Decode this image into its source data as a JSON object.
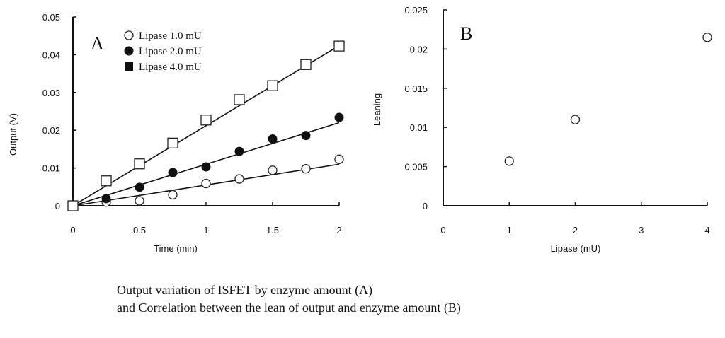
{
  "chart_data": [
    {
      "type": "scatter",
      "panel_label": "A",
      "xlabel": "Time (min)",
      "ylabel": "Output (V)",
      "xlim": [
        0,
        2
      ],
      "ylim": [
        0,
        0.05
      ],
      "xticks": [
        "0",
        "0.5",
        "1",
        "1.5",
        "2"
      ],
      "xtick_values": [
        0,
        0.5,
        1,
        1.5,
        2
      ],
      "yticks": [
        "0",
        "0.01",
        "0.02",
        "0.03",
        "0.04",
        "0.05"
      ],
      "ytick_values": [
        0,
        0.01,
        0.02,
        0.03,
        0.04,
        0.05
      ],
      "grid": false,
      "legend_position": "top-left",
      "series": [
        {
          "name": "Lipase 1.0 mU",
          "marker": "open-circle",
          "x": [
            0,
            0.25,
            0.5,
            0.75,
            1,
            1.25,
            1.5,
            1.75,
            2
          ],
          "y": [
            0,
            0.001,
            0.0013,
            0.0029,
            0.0059,
            0.0071,
            0.0094,
            0.0098,
            0.0123
          ],
          "fit_slope": 0.0055
        },
        {
          "name": "Lipase 2.0 mU",
          "marker": "filled-circle",
          "x": [
            0,
            0.25,
            0.5,
            0.75,
            1,
            1.25,
            1.5,
            1.75,
            2
          ],
          "y": [
            0,
            0.0019,
            0.0049,
            0.0088,
            0.0103,
            0.0144,
            0.0177,
            0.0186,
            0.0234
          ],
          "fit_slope": 0.011
        },
        {
          "name": "Lipase 4.0 mU",
          "marker": "open-square",
          "legend_marker": "filled-square",
          "x": [
            0,
            0.25,
            0.5,
            0.75,
            1,
            1.25,
            1.5,
            1.75,
            2
          ],
          "y": [
            0,
            0.0066,
            0.0111,
            0.0166,
            0.0227,
            0.0281,
            0.0318,
            0.0374,
            0.0423
          ],
          "fit_slope": 0.0212
        }
      ]
    },
    {
      "type": "scatter",
      "panel_label": "B",
      "xlabel": "Lipase (mU)",
      "ylabel": "Leaning",
      "xlim": [
        0,
        4
      ],
      "ylim": [
        0,
        0.025
      ],
      "xticks": [
        "0",
        "1",
        "2",
        "3",
        "4"
      ],
      "xtick_values": [
        0,
        1,
        2,
        3,
        4
      ],
      "yticks": [
        "0",
        "0.005",
        "0.01",
        "0.015",
        "0.02",
        "0.025"
      ],
      "ytick_values": [
        0,
        0.005,
        0.01,
        0.015,
        0.02,
        0.025
      ],
      "grid": false,
      "series": [
        {
          "name": "Leaning",
          "marker": "open-circle",
          "x": [
            1,
            2,
            4
          ],
          "y": [
            0.0057,
            0.011,
            0.0215
          ]
        }
      ]
    }
  ],
  "caption": {
    "line1": "Output variation of ISFET by enzyme amount (A)",
    "line2": "and Correlation between the lean of output and enzyme amount (B)"
  }
}
